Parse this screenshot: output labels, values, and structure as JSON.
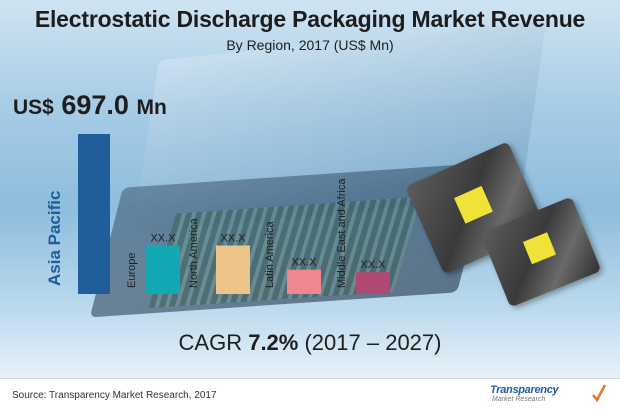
{
  "header": {
    "title": "Electrostatic Discharge Packaging Market Revenue",
    "subtitle": "By Region, 2017 (US$ Mn)"
  },
  "highlight": {
    "currency": "US$",
    "value": "697.0",
    "unit": "Mn"
  },
  "chart_data": {
    "type": "bar",
    "categories": [
      "Asia Pacific",
      "Europe",
      "North America",
      "Latin America",
      "Middle East and Africa"
    ],
    "values": [
      697.0,
      null,
      null,
      null,
      null
    ],
    "value_labels": [
      "",
      "XX.X",
      "XX.X",
      "XX.X",
      "XX.X"
    ],
    "colors": [
      "#1f5e9b",
      "#12a8b4",
      "#ecc487",
      "#ef8791",
      "#b14874"
    ],
    "relative_heights": [
      1.0,
      0.303,
      0.303,
      0.152,
      0.136
    ],
    "axes_visible": false
  },
  "cagr": {
    "prefix": "CAGR",
    "value": "7.2%",
    "period": "(2017 – 2027)"
  },
  "footer": {
    "source": "Source: Transparency Market Research, 2017",
    "logo_line1": "Transparency",
    "logo_line2": "Market Research"
  }
}
